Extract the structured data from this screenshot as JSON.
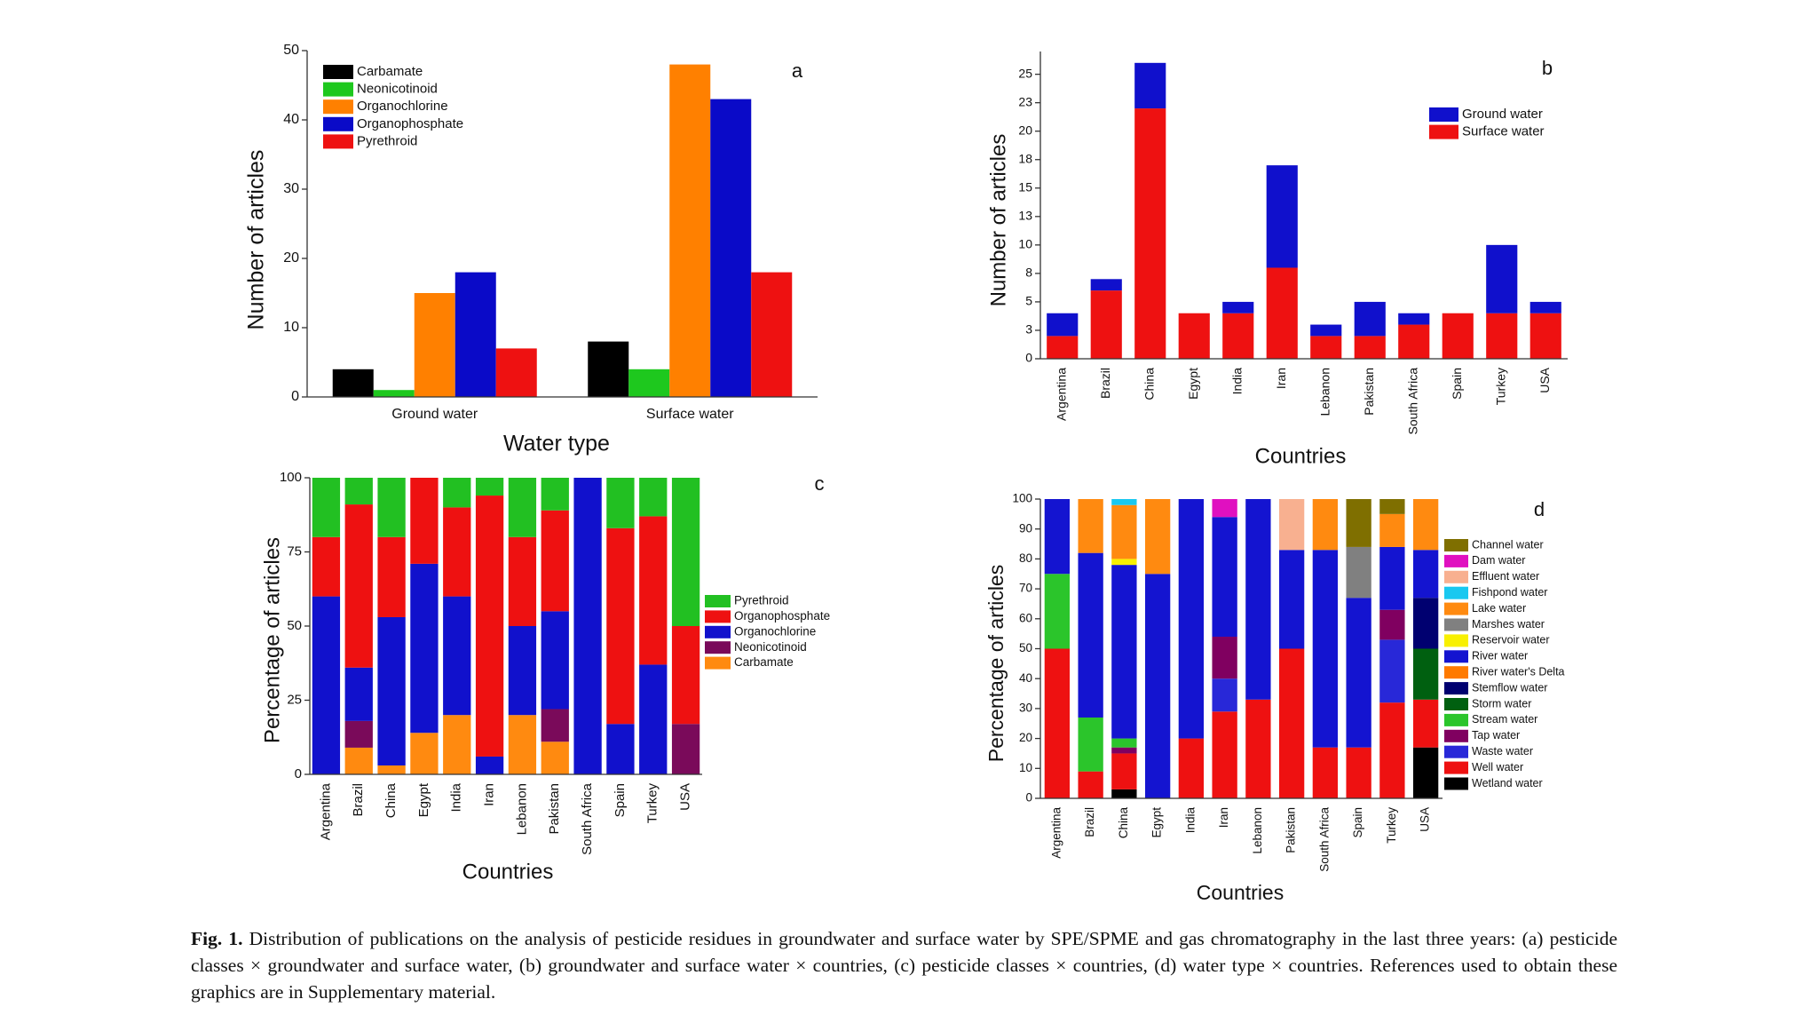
{
  "chart_data": [
    {
      "type": "bar",
      "annotation": "a",
      "xlabel": "Water type",
      "ylabel": "Number of articles",
      "categories": [
        "Ground water",
        "Surface water"
      ],
      "series": [
        {
          "name": "Carbamate",
          "color": "#000000",
          "values": [
            4,
            8
          ]
        },
        {
          "name": "Neonicotinoid",
          "color": "#1ec81e",
          "values": [
            1,
            4
          ]
        },
        {
          "name": "Organochlorine",
          "color": "#ff8000",
          "values": [
            15,
            48
          ]
        },
        {
          "name": "Organophosphate",
          "color": "#0a0ac8",
          "values": [
            18,
            43
          ]
        },
        {
          "name": "Pyrethroid",
          "color": "#ee1111",
          "values": [
            7,
            18
          ]
        }
      ],
      "ylim": [
        0,
        50
      ],
      "yticks": [
        0,
        10,
        20,
        30,
        40,
        50
      ],
      "legend": "upper left"
    },
    {
      "type": "stacked_bar",
      "annotation": "b",
      "xlabel": "Countries",
      "ylabel": "Number of articles",
      "categories": [
        "Argentina",
        "Brazil",
        "China",
        "Egypt",
        "India",
        "Iran",
        "Lebanon",
        "Pakistan",
        "South Africa",
        "Spain",
        "Turkey",
        "USA"
      ],
      "series": [
        {
          "name": "Ground water",
          "color": "#1010cc",
          "values": [
            2,
            1,
            4,
            0,
            1,
            9,
            1,
            3,
            1,
            0,
            6,
            1
          ]
        },
        {
          "name": "Surface water",
          "color": "#ee1111",
          "values": [
            2,
            6,
            22,
            4,
            4,
            8,
            2,
            2,
            3,
            4,
            4,
            4
          ]
        }
      ],
      "ylim": [
        0,
        27
      ],
      "yticks": [
        0,
        {
          "value": 2.5,
          "label": "3"
        },
        5,
        {
          "value": 7.5,
          "label": "8"
        },
        10,
        {
          "value": 12.5,
          "label": "13"
        },
        15,
        {
          "value": 17.5,
          "label": "18"
        },
        20,
        {
          "value": 22.5,
          "label": "23"
        },
        25
      ],
      "legend": "upper right"
    },
    {
      "type": "stacked_bar",
      "annotation": "c",
      "xlabel": "Countries",
      "ylabel": "Percentage of articles",
      "categories": [
        "Argentina",
        "Brazil",
        "China",
        "Egypt",
        "India",
        "Iran",
        "Lebanon",
        "Pakistan",
        "South Africa",
        "Spain",
        "Turkey",
        "USA"
      ],
      "series": [
        {
          "name": "Pyrethroid",
          "color": "#22c022",
          "values": [
            20,
            9,
            20,
            0,
            10,
            6,
            20,
            11,
            0,
            17,
            13,
            50
          ]
        },
        {
          "name": "Organophosphate",
          "color": "#ee1111",
          "values": [
            20,
            55,
            27,
            29,
            30,
            88,
            30,
            34,
            0,
            66,
            50,
            33
          ]
        },
        {
          "name": "Organochlorine",
          "color": "#1111cc",
          "values": [
            60,
            18,
            50,
            57,
            40,
            6,
            30,
            33,
            100,
            17,
            37,
            0
          ]
        },
        {
          "name": "Neonicotinoid",
          "color": "#7a0a5a",
          "values": [
            0,
            9,
            0,
            0,
            0,
            0,
            0,
            11,
            0,
            0,
            0,
            17
          ]
        },
        {
          "name": "Carbamate",
          "color": "#ff8a10",
          "values": [
            0,
            9,
            3,
            14,
            20,
            0,
            20,
            11,
            0,
            0,
            0,
            0
          ]
        }
      ],
      "ylim": [
        0,
        100
      ],
      "yticks": [
        0,
        25,
        50,
        75,
        100
      ],
      "legend": "right"
    },
    {
      "type": "stacked_bar",
      "annotation": "d",
      "xlabel": "Countries",
      "ylabel": "Percentage of articles",
      "categories": [
        "Argentina",
        "Brazil",
        "China",
        "Egypt",
        "India",
        "Iran",
        "Lebanon",
        "Pakistan",
        "South Africa",
        "Spain",
        "Turkey",
        "USA"
      ],
      "series": [
        {
          "name": "Channel water",
          "color": "#7f6f00",
          "values": [
            0,
            0,
            0,
            0,
            0,
            0,
            0,
            0,
            0,
            16,
            5,
            0
          ]
        },
        {
          "name": "Dam water",
          "color": "#e010c0",
          "values": [
            0,
            0,
            0,
            0,
            0,
            6,
            0,
            0,
            0,
            0,
            0,
            0
          ]
        },
        {
          "name": "Effluent water",
          "color": "#f8b090",
          "values": [
            0,
            0,
            0,
            0,
            0,
            0,
            0,
            17,
            0,
            0,
            0,
            0
          ]
        },
        {
          "name": "Fishpond water",
          "color": "#19c8f0",
          "values": [
            0,
            0,
            2,
            0,
            0,
            0,
            0,
            0,
            0,
            0,
            0,
            0
          ]
        },
        {
          "name": "Lake water",
          "color": "#ff8a10",
          "values": [
            0,
            18,
            18,
            25,
            0,
            0,
            0,
            0,
            17,
            0,
            11,
            17
          ]
        },
        {
          "name": "Marshes water",
          "color": "#808080",
          "values": [
            0,
            0,
            0,
            0,
            0,
            0,
            0,
            0,
            0,
            17,
            0,
            0
          ]
        },
        {
          "name": "Reservoir water",
          "color": "#f8f000",
          "values": [
            0,
            0,
            2,
            0,
            0,
            0,
            0,
            0,
            0,
            0,
            0,
            0
          ]
        },
        {
          "name": "River water",
          "color": "#1414d0",
          "values": [
            25,
            55,
            58,
            75,
            80,
            40,
            67,
            33,
            66,
            50,
            21,
            16
          ]
        },
        {
          "name": "River water's Delta",
          "color": "#ff7a00",
          "values": [
            0,
            0,
            0,
            0,
            0,
            0,
            0,
            0,
            0,
            0,
            0,
            0
          ]
        },
        {
          "name": "Stemflow water",
          "color": "#000070",
          "values": [
            0,
            0,
            0,
            0,
            0,
            0,
            0,
            0,
            0,
            0,
            0,
            17
          ]
        },
        {
          "name": "Storm water",
          "color": "#006010",
          "values": [
            0,
            0,
            0,
            0,
            0,
            0,
            0,
            0,
            0,
            0,
            0,
            17
          ]
        },
        {
          "name": "Stream water",
          "color": "#2bc52b",
          "values": [
            25,
            18,
            3,
            0,
            0,
            0,
            0,
            0,
            0,
            0,
            0,
            0
          ]
        },
        {
          "name": "Tap water",
          "color": "#800060",
          "values": [
            0,
            0,
            2,
            0,
            0,
            14,
            0,
            0,
            0,
            0,
            10,
            0
          ]
        },
        {
          "name": "Waste water",
          "color": "#2828d8",
          "values": [
            0,
            0,
            0,
            0,
            0,
            11,
            0,
            0,
            0,
            0,
            21,
            0
          ]
        },
        {
          "name": "Well water",
          "color": "#ee1111",
          "values": [
            50,
            9,
            12,
            0,
            20,
            29,
            33,
            50,
            17,
            17,
            32,
            16
          ]
        },
        {
          "name": "Wetland water",
          "color": "#000000",
          "values": [
            0,
            0,
            3,
            0,
            0,
            0,
            0,
            0,
            0,
            0,
            0,
            17
          ]
        }
      ],
      "ylim": [
        0,
        100
      ],
      "yticks": [
        0,
        10,
        20,
        30,
        40,
        50,
        60,
        70,
        80,
        90,
        100
      ],
      "legend": "right"
    }
  ],
  "caption": {
    "label": "Fig. 1.",
    "text": "Distribution of publications on the analysis of pesticide residues in groundwater and surface water by SPE/SPME and gas chromatography in the last three years: (a) pesticide classes × groundwater and surface water, (b) groundwater and surface water × countries, (c) pesticide classes × countries, (d) water type × countries. References used to obtain these graphics are in Supplementary material."
  }
}
